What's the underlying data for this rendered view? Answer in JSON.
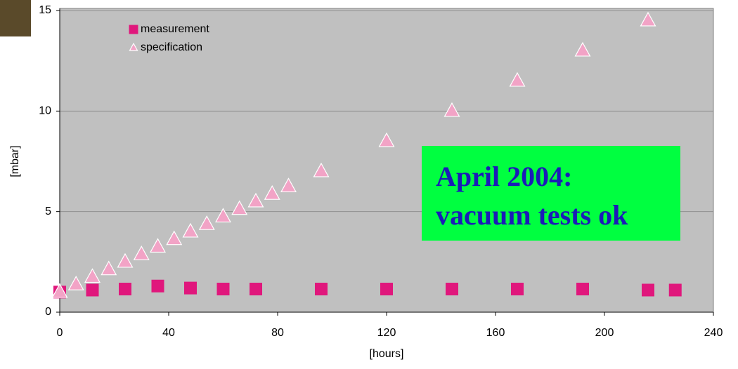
{
  "chart_data": {
    "type": "scatter",
    "xlabel": "[hours]",
    "ylabel": "[mbar]",
    "series": [
      {
        "name": "measurement",
        "color": "#e0177c",
        "marker": "square",
        "x": [
          0,
          12,
          24,
          36,
          48,
          60,
          72,
          96,
          120,
          144,
          168,
          192,
          216,
          226
        ],
        "values": [
          1.0,
          1.1,
          1.15,
          1.3,
          1.2,
          1.15,
          1.15,
          1.15,
          1.15,
          1.15,
          1.15,
          1.15,
          1.1,
          1.1
        ]
      },
      {
        "name": "specification",
        "color": "#f2a3c6",
        "marker": "triangle",
        "x": [
          0,
          6,
          12,
          18,
          24,
          30,
          36,
          42,
          48,
          54,
          60,
          66,
          72,
          78,
          84,
          96,
          120,
          144,
          168,
          192,
          216
        ],
        "values": [
          1.0,
          1.375,
          1.75,
          2.125,
          2.5,
          2.875,
          3.25,
          3.625,
          4.0,
          4.375,
          4.75,
          5.125,
          5.5,
          5.875,
          6.25,
          7.0,
          8.5,
          10.0,
          11.5,
          13.0,
          14.5
        ]
      }
    ],
    "xlim": [
      0,
      240
    ],
    "xticks": [
      0,
      40,
      80,
      120,
      160,
      200,
      240
    ],
    "ylim": [
      0,
      15
    ],
    "yticks": [
      0,
      5,
      10,
      15
    ],
    "grid": true,
    "legend": "upper left",
    "annotation": [
      "April 2004:",
      "vacuum tests ok"
    ]
  }
}
